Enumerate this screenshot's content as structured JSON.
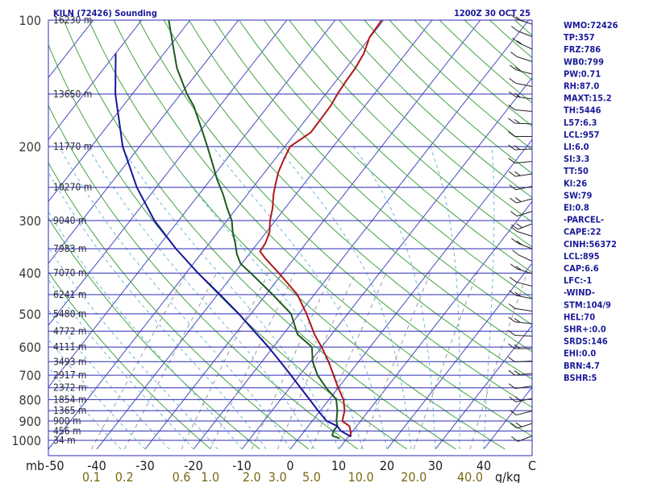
{
  "header": {
    "station": "KILN (72426) Sounding",
    "time": "1200Z 30 OCT 25"
  },
  "colors": {
    "isobar": "#2b2bb4",
    "isotherm": "#4848c0",
    "dry_adiabat": "#42a342",
    "moist_adiabat": "#6cb6d8",
    "mixing_ratio": "#9a9a9a",
    "temperature": "#b01818",
    "dewpoint": "#1d5a1d",
    "parcel": "#16169a",
    "index_text": "#1a1a9a",
    "mixing_label": "#7a6a14"
  },
  "indices": [
    "WMO:72426",
    "TP:357",
    "FRZ:786",
    "WB0:799",
    "PW:0.71",
    "RH:87.0",
    "MAXT:15.2",
    "TH:5446",
    "L57:6.3",
    "LCL:957",
    "LI:6.0",
    "SI:3.3",
    "TT:50",
    "KI:26",
    "SW:79",
    "EI:0.8",
    "-PARCEL-",
    "CAPE:22",
    "CINH:56372",
    "LCL:895",
    "CAP:6.6",
    "LFC:-1",
    "-WIND-",
    "STM:104/9",
    "HEL:70",
    "SHR+:0.0",
    "SRDS:146",
    "EHI:0.0",
    "BRN:4.7",
    "BSHR:5"
  ],
  "chart_data": {
    "type": "line",
    "title": "KILN (72426) Sounding",
    "subtitle": "1200Z 30 OCT 25",
    "diagram": "skew-T log-P",
    "ylabel": "mb",
    "xlabel": "C",
    "mixing_ratio_unit": "g/kg",
    "ylim": [
      1000,
      100
    ],
    "xlim_at_bottom": [
      -50,
      50
    ],
    "pressure_ticks": [
      100,
      200,
      300,
      400,
      500,
      600,
      700,
      800,
      900,
      1000
    ],
    "pressure_tick_labels": [
      "100",
      "200",
      "300",
      "400",
      "500",
      "600",
      "700",
      "800",
      "900",
      "1000"
    ],
    "temperature_ticks": [
      -40,
      -30,
      -20,
      -10,
      0,
      10,
      20,
      30,
      40
    ],
    "temperature_tick_labels": [
      "-40",
      "-30",
      "-20",
      "-10",
      "0",
      "10",
      "20",
      "30",
      "40"
    ],
    "axis_left_end": "-50",
    "mixing_ratio_ticks": [
      0.1,
      0.2,
      0.6,
      1.0,
      2.0,
      3.0,
      5.0,
      10.0,
      20.0,
      40.0
    ],
    "mixing_ratio_labels": [
      "0.1",
      "0.2",
      "0.6",
      "1.0",
      "2.0",
      "3.0",
      "5.0",
      "10.0",
      "20.0",
      "40.0"
    ],
    "height_levels": [
      {
        "p": 100,
        "label": "16230 m"
      },
      {
        "p": 150,
        "label": "13650 m"
      },
      {
        "p": 200,
        "label": "11770 m"
      },
      {
        "p": 250,
        "label": "10270 m"
      },
      {
        "p": 300,
        "label": "9040 m"
      },
      {
        "p": 350,
        "label": "7983 m"
      },
      {
        "p": 400,
        "label": "7070 m"
      },
      {
        "p": 450,
        "label": "6241 m"
      },
      {
        "p": 500,
        "label": "5480 m"
      },
      {
        "p": 550,
        "label": "4772 m"
      },
      {
        "p": 600,
        "label": "4111 m"
      },
      {
        "p": 650,
        "label": "3493 m"
      },
      {
        "p": 700,
        "label": "2917 m"
      },
      {
        "p": 750,
        "label": "2372 m"
      },
      {
        "p": 800,
        "label": "1854 m"
      },
      {
        "p": 850,
        "label": "1365 m"
      },
      {
        "p": 900,
        "label": "900 m"
      },
      {
        "p": 950,
        "label": "456 m"
      },
      {
        "p": 1000,
        "label": "34 m"
      }
    ],
    "series": [
      {
        "name": "Temperature",
        "points": [
          [
            980,
            10.5
          ],
          [
            950,
            9.5
          ],
          [
            925,
            8.5
          ],
          [
            900,
            6.2
          ],
          [
            850,
            5.0
          ],
          [
            800,
            3.0
          ],
          [
            750,
            0.0
          ],
          [
            700,
            -3.0
          ],
          [
            650,
            -6.2
          ],
          [
            600,
            -10.0
          ],
          [
            560,
            -13.5
          ],
          [
            500,
            -18.5
          ],
          [
            450,
            -23.5
          ],
          [
            400,
            -30.8
          ],
          [
            370,
            -35.8
          ],
          [
            355,
            -38.2
          ],
          [
            340,
            -38.4
          ],
          [
            320,
            -39.3
          ],
          [
            300,
            -41.1
          ],
          [
            280,
            -42.6
          ],
          [
            260,
            -44.6
          ],
          [
            245,
            -45.9
          ],
          [
            230,
            -47.2
          ],
          [
            215,
            -48.1
          ],
          [
            200,
            -48.9
          ],
          [
            185,
            -46.9
          ],
          [
            170,
            -47.0
          ],
          [
            160,
            -47.1
          ],
          [
            150,
            -47.6
          ],
          [
            140,
            -47.9
          ],
          [
            130,
            -48.1
          ],
          [
            120,
            -48.7
          ],
          [
            110,
            -50.1
          ],
          [
            100,
            -50.4
          ]
        ]
      },
      {
        "name": "Dewpoint",
        "points": [
          [
            990,
            8.5
          ],
          [
            975,
            6.5
          ],
          [
            950,
            6.0
          ],
          [
            925,
            6.0
          ],
          [
            900,
            5.0
          ],
          [
            850,
            3.5
          ],
          [
            800,
            1.5
          ],
          [
            750,
            -2.5
          ],
          [
            700,
            -6.3
          ],
          [
            650,
            -9.5
          ],
          [
            600,
            -12.0
          ],
          [
            560,
            -17.0
          ],
          [
            500,
            -21.7
          ],
          [
            450,
            -28.6
          ],
          [
            400,
            -36.6
          ],
          [
            380,
            -40.2
          ],
          [
            360,
            -42.6
          ],
          [
            340,
            -44.6
          ],
          [
            320,
            -46.9
          ],
          [
            300,
            -49.0
          ],
          [
            280,
            -52.0
          ],
          [
            260,
            -55.0
          ],
          [
            240,
            -58.6
          ],
          [
            220,
            -62.1
          ],
          [
            200,
            -66.0
          ],
          [
            180,
            -70.4
          ],
          [
            160,
            -75.4
          ],
          [
            150,
            -78.7
          ],
          [
            130,
            -85.0
          ],
          [
            115,
            -89.4
          ],
          [
            100,
            -94.4
          ]
        ]
      },
      {
        "name": "Parcel",
        "points": [
          [
            980,
            10.5
          ],
          [
            950,
            7.5
          ],
          [
            925,
            6.0
          ],
          [
            900,
            3.0
          ],
          [
            850,
            -0.5
          ],
          [
            800,
            -4.0
          ],
          [
            750,
            -7.8
          ],
          [
            700,
            -11.8
          ],
          [
            650,
            -16.2
          ],
          [
            600,
            -21.0
          ],
          [
            550,
            -26.5
          ],
          [
            500,
            -32.5
          ],
          [
            450,
            -39.5
          ],
          [
            400,
            -47.5
          ],
          [
            350,
            -56.0
          ],
          [
            300,
            -65.0
          ],
          [
            250,
            -74.0
          ],
          [
            200,
            -83.5
          ],
          [
            150,
            -93.5
          ],
          [
            120,
            -100.0
          ]
        ]
      }
    ]
  }
}
